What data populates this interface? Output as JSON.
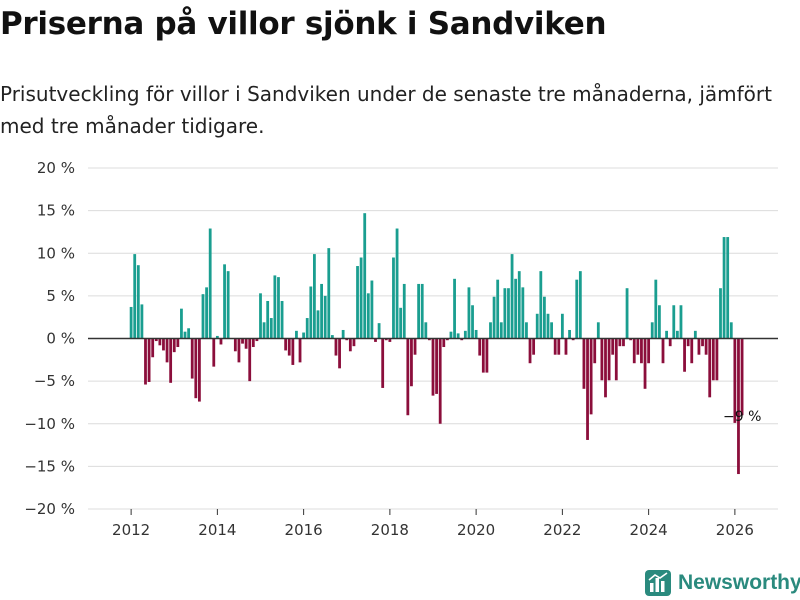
{
  "header": {
    "title": "Priserna på villor sjönk i Sandviken",
    "subtitle": "Prisutveckling för villor i Sandviken under de senaste tre månaderna, jämfört med tre månader tidigare."
  },
  "brand": {
    "name": "Newsworthy",
    "logo_icon": "bar-chart-logo-icon",
    "color": "#2a8a7e"
  },
  "chart_data": {
    "type": "bar",
    "title": "Priserna på villor sjönk i Sandviken",
    "xlabel": "",
    "ylabel": "",
    "ylim": [
      -20,
      20
    ],
    "xlim": [
      2011.0,
      2027.0
    ],
    "yticks": [
      -20,
      -15,
      -10,
      -5,
      0,
      5,
      10,
      15,
      20
    ],
    "ytick_labels": [
      "−20 %",
      "−15 %",
      "−10 %",
      "−5 %",
      "0 %",
      "5 %",
      "10 %",
      "15 %",
      "20 %"
    ],
    "xticks": [
      2012,
      2014,
      2016,
      2018,
      2020,
      2022,
      2024,
      2026
    ],
    "xtick_labels": [
      "2012",
      "2014",
      "2016",
      "2018",
      "2020",
      "2022",
      "2024",
      "2026"
    ],
    "grid": true,
    "positive_color": "#1a9e90",
    "negative_color": "#8b0e3b",
    "start": {
      "year": 2012,
      "month": 1
    },
    "values": [
      3.7,
      9.9,
      8.6,
      4.0,
      -5.4,
      -5.1,
      -2.2,
      -0.3,
      -0.8,
      -1.4,
      -2.8,
      -5.2,
      -1.6,
      -1.0,
      3.5,
      0.8,
      1.2,
      -4.7,
      -7.0,
      -7.4,
      5.2,
      6.0,
      12.9,
      -3.3,
      0.3,
      -0.7,
      8.7,
      7.9,
      0.0,
      -1.5,
      -2.8,
      -0.6,
      -1.2,
      -5.0,
      -1.0,
      -0.3,
      5.3,
      1.9,
      4.4,
      2.4,
      7.4,
      7.2,
      4.4,
      -1.4,
      -2.0,
      -3.1,
      0.9,
      -2.8,
      0.7,
      2.4,
      6.1,
      9.9,
      3.3,
      6.4,
      5.0,
      10.6,
      0.4,
      -2.0,
      -3.5,
      1.0,
      -0.2,
      -1.5,
      -0.9,
      8.5,
      9.5,
      14.7,
      5.3,
      6.8,
      -0.4,
      1.8,
      -5.8,
      -0.2,
      -0.4,
      9.5,
      12.9,
      3.6,
      6.4,
      -9.0,
      -5.6,
      -1.9,
      6.4,
      6.4,
      1.9,
      -0.2,
      -6.7,
      -6.5,
      -10.0,
      -1.0,
      -0.2,
      0.8,
      7.0,
      0.6,
      -0.2,
      0.9,
      6.0,
      3.9,
      1.0,
      -2.0,
      -4.0,
      -4.0,
      1.9,
      4.9,
      6.9,
      1.9,
      5.9,
      5.9,
      9.9,
      7.0,
      7.9,
      6.0,
      1.9,
      -2.9,
      -1.9,
      2.9,
      7.9,
      4.9,
      2.9,
      1.9,
      -1.9,
      -1.9,
      2.9,
      -1.9,
      1.0,
      -0.2,
      6.9,
      7.9,
      -5.9,
      -11.9,
      -8.9,
      -2.9,
      1.9,
      -4.9,
      -6.9,
      -4.9,
      -1.9,
      -4.9,
      -0.9,
      -0.9,
      5.9,
      -0.2,
      -2.9,
      -1.9,
      -2.9,
      -5.9,
      -2.9,
      1.9,
      6.9,
      3.9,
      -2.9,
      0.9,
      -0.9,
      3.9,
      0.9,
      3.9,
      -3.9,
      -0.9,
      -2.9,
      0.9,
      -1.9,
      -0.9,
      -1.9,
      -6.9,
      -4.9,
      -4.9,
      5.9,
      11.9,
      11.9,
      1.9,
      -9.9,
      -15.9,
      -9.0
    ],
    "annotations": [
      {
        "text": "−9 %",
        "x": 2026.1,
        "y": -9.0
      }
    ]
  }
}
